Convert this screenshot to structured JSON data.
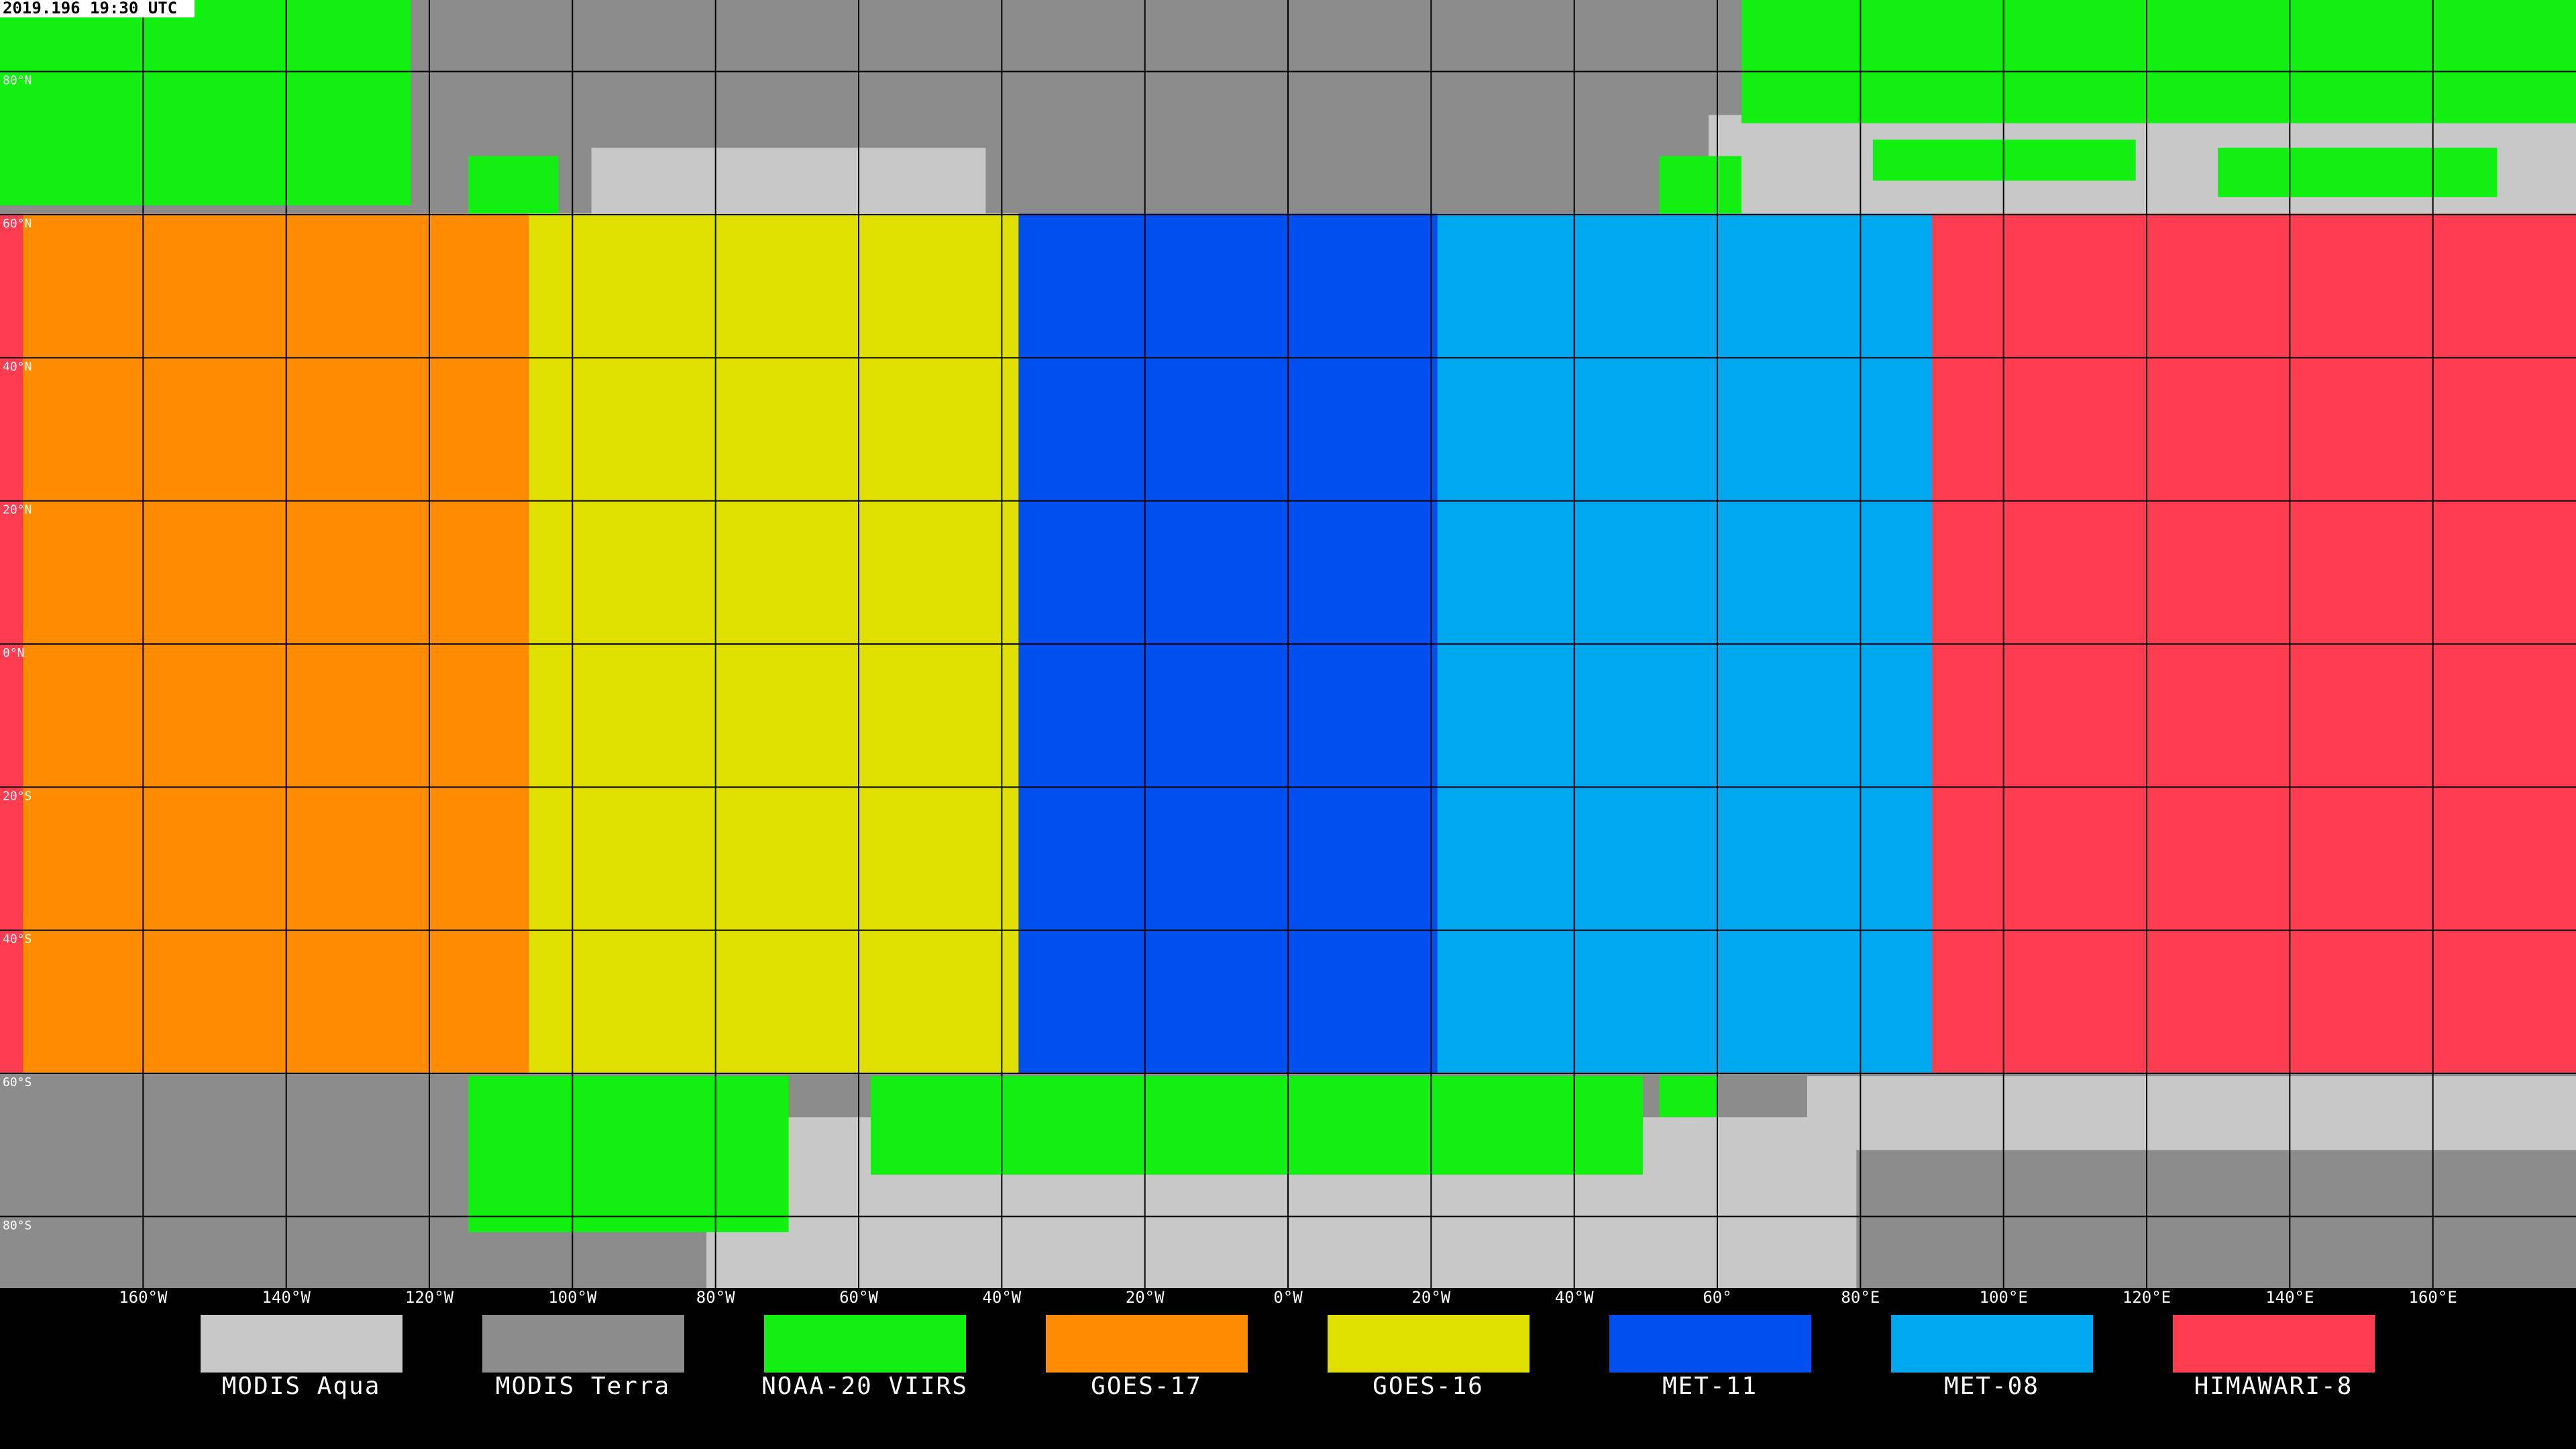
{
  "timestamp": "2019.196 19:30 UTC",
  "latitude_labels": [
    "80°N",
    "60°N",
    "40°N",
    "20°N",
    "0°N",
    "20°S",
    "40°S",
    "60°S",
    "80°S"
  ],
  "longitude_labels": [
    "160°W",
    "140°W",
    "120°W",
    "100°W",
    "80°W",
    "60°W",
    "40°W",
    "20°W",
    "0°W",
    "20°W",
    "40°W",
    "60°",
    "80°E",
    "100°E",
    "120°E",
    "140°E",
    "160°E"
  ],
  "legend": [
    {
      "name": "MODIS Aqua",
      "color": "#c8c8c8"
    },
    {
      "name": "MODIS Terra",
      "color": "#8c8c8c"
    },
    {
      "name": "NOAA-20 VIIRS",
      "color": "#12f012"
    },
    {
      "name": "GOES-17",
      "color": "#ff8c00"
    },
    {
      "name": "GOES-16",
      "color": "#e0e000"
    },
    {
      "name": "MET-11",
      "color": "#0050f0"
    },
    {
      "name": "MET-08",
      "color": "#00a8f0"
    },
    {
      "name": "HIMAWARI-8",
      "color": "#ff3c50"
    }
  ]
}
